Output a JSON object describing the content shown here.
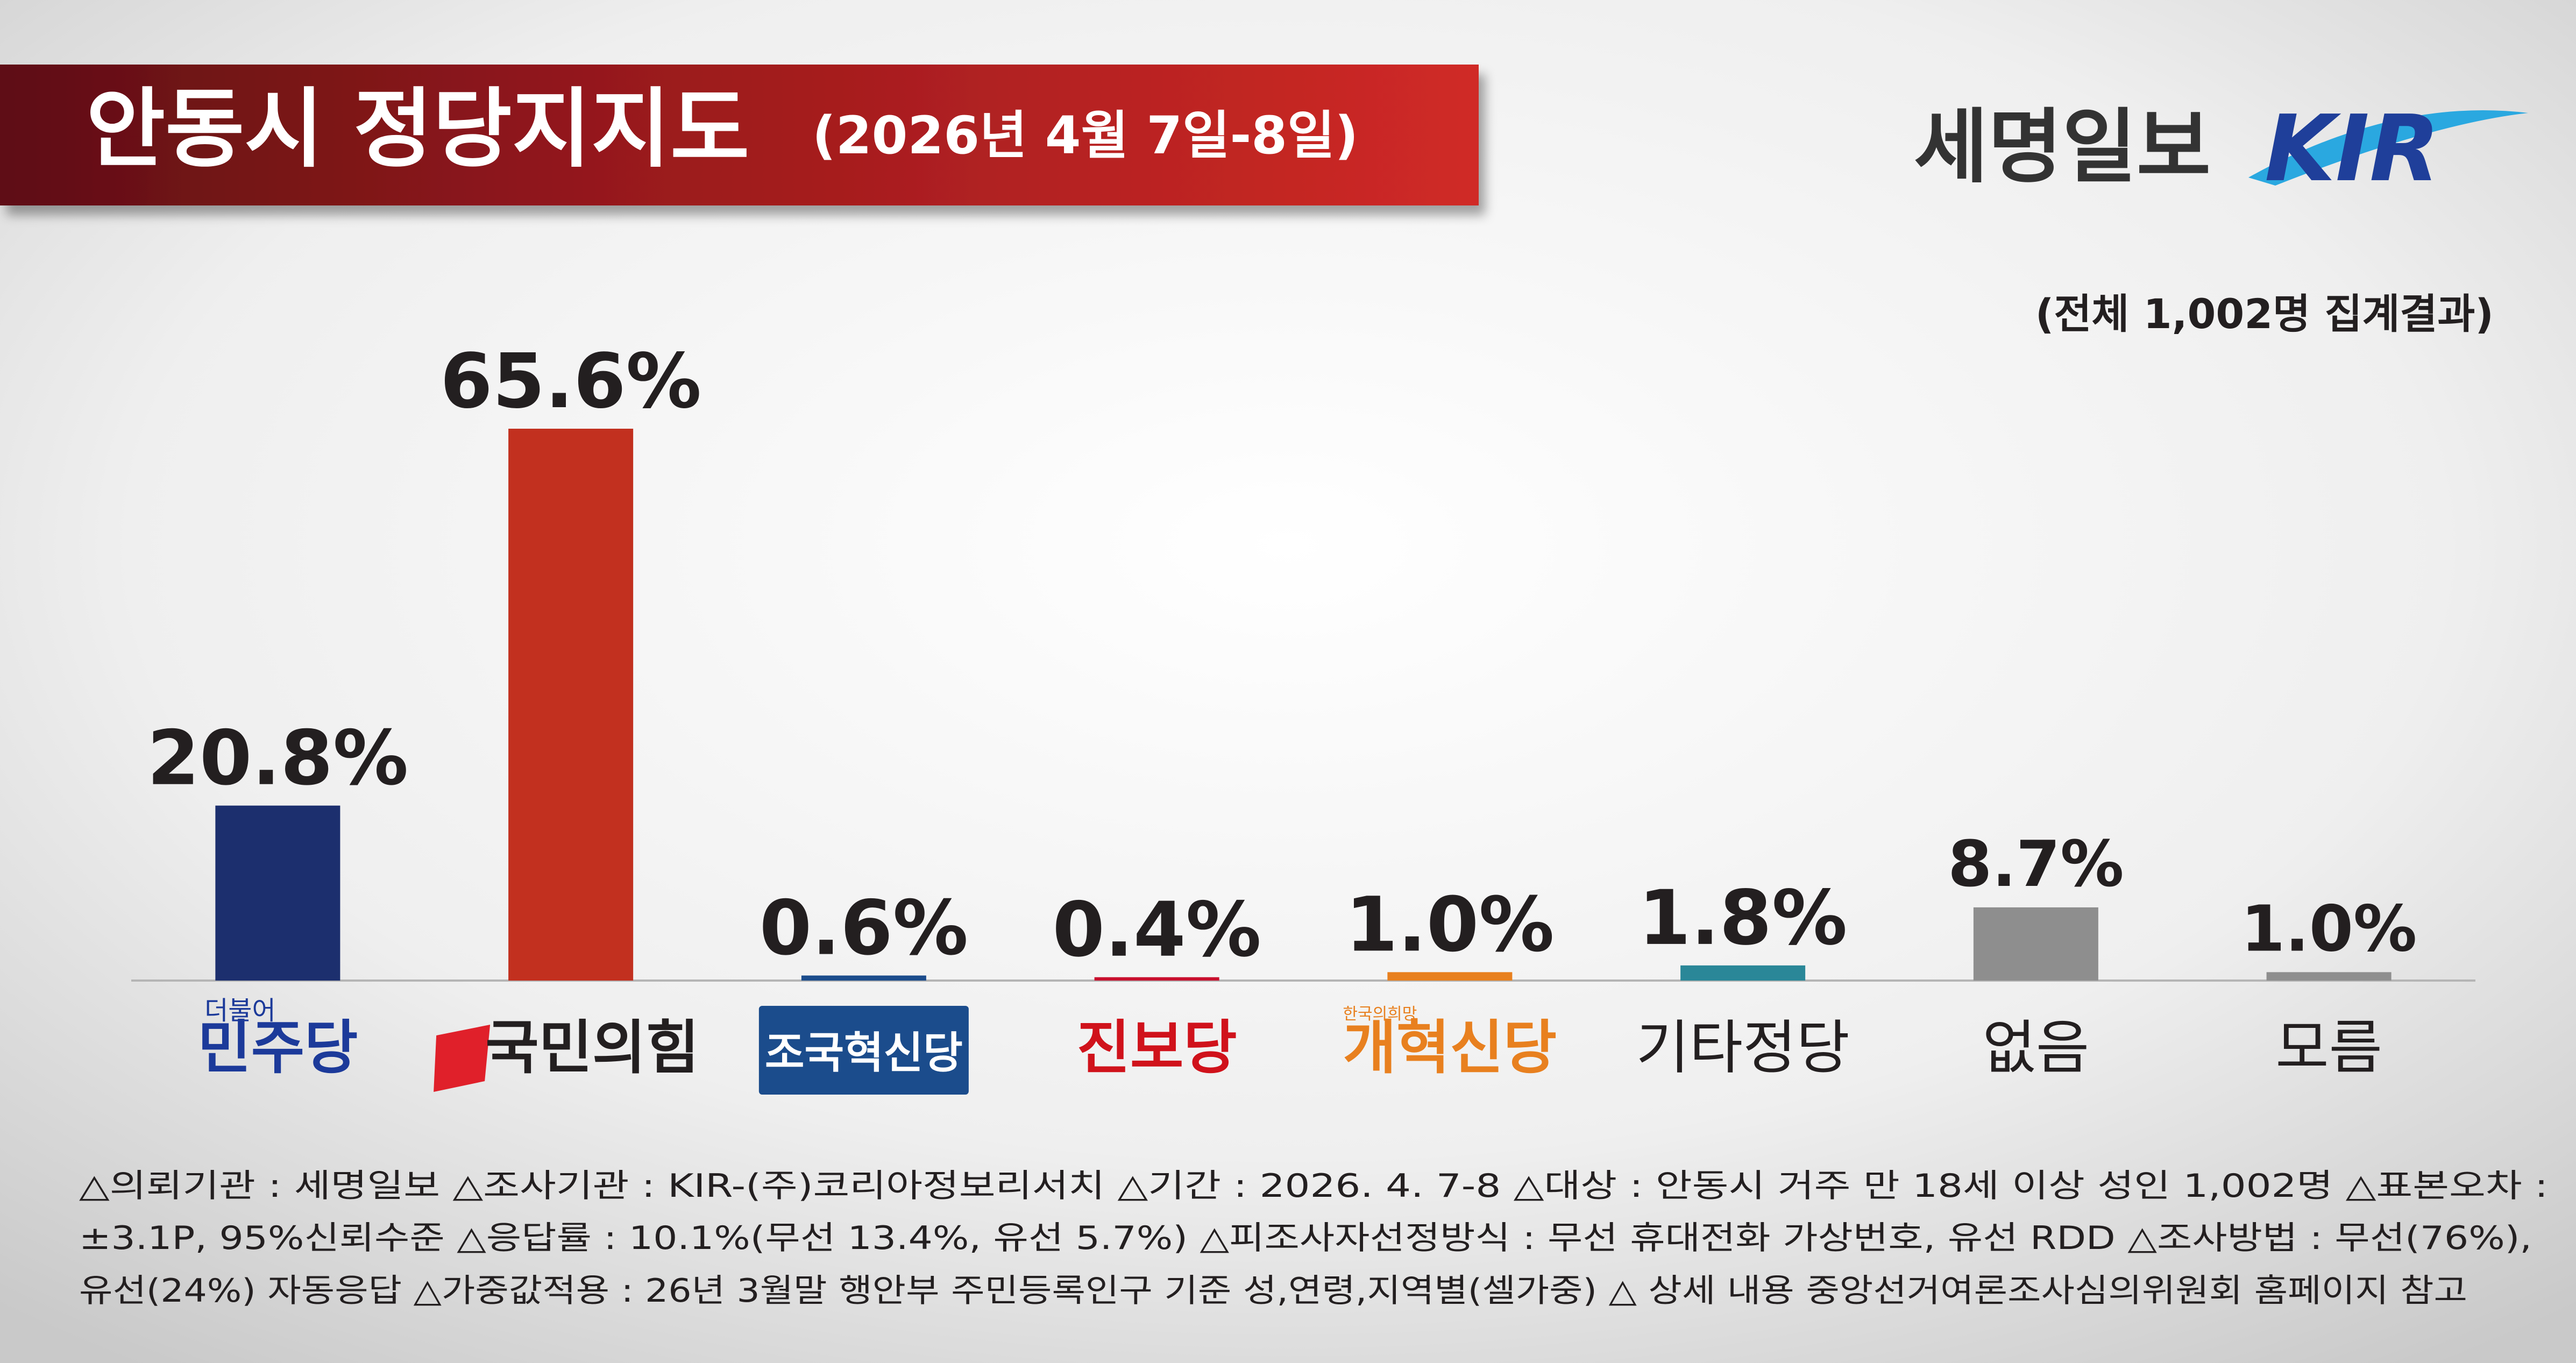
{
  "header": {
    "title": "안동시 정당지지도",
    "subtitle": "(2026년 4월 7일-8일)",
    "publisher": "세명일보",
    "logo": "KIR",
    "sample_note": "(전체 1,002명 집계결과)"
  },
  "chart_data": {
    "type": "bar",
    "categories": [
      "민주당",
      "국민의힘",
      "조국혁신당",
      "진보당",
      "개혁신당",
      "기타정당",
      "없음",
      "모름"
    ],
    "logo_taglines": {
      "0": "더불어",
      "4": "한국의희망"
    },
    "values": [
      20.8,
      65.6,
      0.6,
      0.4,
      1.0,
      1.8,
      8.7,
      1.0
    ],
    "value_labels": [
      "20.8%",
      "65.6%",
      "0.6%",
      "0.4%",
      "1.0%",
      "1.8%",
      "8.7%",
      "1.0%"
    ],
    "colors": [
      "#1c2f6e",
      "#c2301f",
      "#1b4c8c",
      "#c8102e",
      "#e8801f",
      "#2a8798",
      "#8e8e8e",
      "#8e8e8e"
    ],
    "label_colors": [
      "#1c3a9a",
      "#231f20",
      "#ffffff",
      "#d0121b",
      "#e8801f",
      "#231f20",
      "#231f20",
      "#231f20"
    ]
  },
  "footnote_lines": [
    "△의뢰기관 : 세명일보  △조사기관 : KIR-(주)코리아정보리서치  △기간 : 2026. 4. 7-8  △대상 : 안동시 거주 만 18세 이상 성인 1,002명  △표본오차 :",
    "±3.1P, 95%신뢰수준  △응답률 : 10.1%(무선 13.4%, 유선 5.7%)  △피조사자선정방식 : 무선 휴대전화 가상번호, 유선 RDD  △조사방법 : 무선(76%),",
    "유선(24%) 자동응답  △가중값적용 : 26년 3월말 행안부 주민등록인구 기준 성,연령,지역별(셀가중)  △ 상세 내용 중앙선거여론조사심의위원회 홈페이지 참고"
  ]
}
